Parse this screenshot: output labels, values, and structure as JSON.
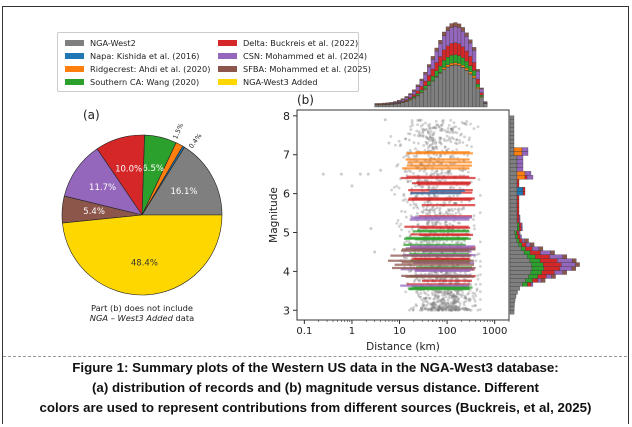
{
  "legend": {
    "items": [
      {
        "label": "NGA-West2",
        "color": "#7f7f7f"
      },
      {
        "label": "Napa: Kishida et al. (2016)",
        "color": "#1f77b4"
      },
      {
        "label": "Ridgecrest: Ahdi et al. (2020)",
        "color": "#ff7f0e"
      },
      {
        "label": "Southern CA: Wang (2020)",
        "color": "#2ca02c"
      },
      {
        "label": "Delta: Buckreis et al. (2022)",
        "color": "#d62728"
      },
      {
        "label": "CSN: Mohammed et al. (2024)",
        "color": "#9467bd"
      },
      {
        "label": "SFBA: Mohammed et al. (2025)",
        "color": "#8c564b"
      },
      {
        "label": "NGA-West3 Added",
        "color": "#ffd700"
      }
    ]
  },
  "chart_data": [
    {
      "type": "pie",
      "panel_label": "(a)",
      "slices": [
        {
          "label": "NGA-West2",
          "value": 16.1,
          "value_label": "16.1%",
          "color": "#7f7f7f"
        },
        {
          "label": "Napa: Kishida et al. (2016)",
          "value": 0.4,
          "value_label": "0.4%",
          "color": "#1f77b4"
        },
        {
          "label": "Ridgecrest: Ahdi et al. (2020)",
          "value": 1.5,
          "value_label": "1.5%",
          "color": "#ff7f0e"
        },
        {
          "label": "Southern CA: Wang (2020)",
          "value": 6.5,
          "value_label": "6.5%",
          "color": "#2ca02c"
        },
        {
          "label": "Delta: Buckreis et al. (2022)",
          "value": 10.0,
          "value_label": "10.0%",
          "color": "#d62728"
        },
        {
          "label": "CSN: Mohammed et al. (2024)",
          "value": 11.7,
          "value_label": "11.7%",
          "color": "#9467bd"
        },
        {
          "label": "SFBA: Mohammed et al. (2025)",
          "value": 5.4,
          "value_label": "5.4%",
          "color": "#8c564b"
        },
        {
          "label": "NGA-West3 Added",
          "value": 48.4,
          "value_label": "48.4%",
          "color": "#ffd700"
        }
      ],
      "note_line1": "Part (b) does not include",
      "note_line2_italic": "NGA – West3 Added",
      "note_line2_rest": " data"
    },
    {
      "type": "scatter",
      "panel_label": "(b)",
      "xlabel": "Distance (km)",
      "ylabel": "Magnitude",
      "xscale": "log",
      "xlim": [
        0.07,
        2000
      ],
      "ylim": [
        2.75,
        8.15
      ],
      "xticks": [
        0.1,
        1,
        10,
        100,
        1000
      ],
      "xtick_labels": [
        "0.1",
        "1",
        "10",
        "100",
        "1000"
      ],
      "yticks": [
        3,
        4,
        5,
        6,
        7,
        8
      ],
      "ytick_labels": [
        "3",
        "4",
        "5",
        "6",
        "7",
        "8"
      ],
      "marginal_histograms": "top (distance) and right (magnitude), stacked by source",
      "scatter_bands": [
        {
          "source": "NGA-West2",
          "color": "#7f7f7f",
          "mag_range": [
            3.0,
            7.9
          ],
          "dist_range": [
            3,
            400
          ],
          "note": "dominant grey cloud"
        },
        {
          "source": "Southern CA: Wang (2020)",
          "color": "#2ca02c",
          "mag_range": [
            3.5,
            5.2
          ],
          "dist_range": [
            8,
            350
          ]
        },
        {
          "source": "Delta: Buckreis et al. (2022)",
          "color": "#d62728",
          "mag_range": [
            3.6,
            6.5
          ],
          "dist_range": [
            10,
            400
          ]
        },
        {
          "source": "CSN: Mohammed et al. (2024)",
          "color": "#9467bd",
          "mag_range": [
            3.6,
            5.5
          ],
          "dist_range": [
            10,
            400
          ]
        },
        {
          "source": "SFBA: Mohammed et al. (2025)",
          "color": "#8c564b",
          "mag_range": [
            3.7,
            4.8
          ],
          "dist_range": [
            5,
            400
          ]
        },
        {
          "source": "Ridgecrest: Ahdi et al. (2020)",
          "color": "#ff7f0e",
          "mag_range": [
            6.4,
            7.1
          ],
          "dist_range": [
            10,
            400
          ]
        },
        {
          "source": "Napa: Kishida et al. (2016)",
          "color": "#1f77b4",
          "mag_range": [
            6.0,
            6.1
          ],
          "dist_range": [
            15,
            250
          ]
        }
      ]
    }
  ],
  "caption": {
    "line1": "Figure 1: Summary plots of the Western US data in the NGA-West3 database:",
    "line2": "(a) distribution of records and (b) magnitude versus distance. Different",
    "line3": "colors are used to represent contributions from different sources (Buckreis, et al, 2025)"
  }
}
